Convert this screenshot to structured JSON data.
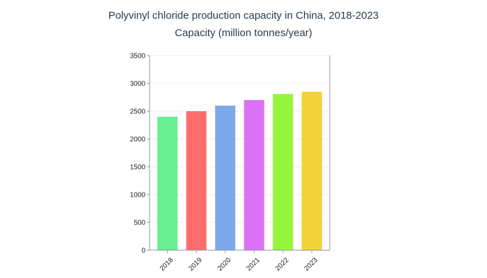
{
  "chart_data": {
    "type": "bar",
    "title": "Polyvinyl chloride production capacity in China, 2018-2023",
    "subtitle": "Capacity (million tonnes/year)",
    "xlabel": "",
    "ylabel": "",
    "categories": [
      "2018",
      "2019",
      "2020",
      "2021",
      "2022",
      "2023"
    ],
    "values": [
      2400,
      2500,
      2600,
      2700,
      2810,
      2850
    ],
    "colors": [
      "#66ee90",
      "#fd6d6d",
      "#7ea9e9",
      "#db72f5",
      "#96f53f",
      "#f3d237"
    ],
    "ylim": [
      0,
      3500
    ],
    "yticks": [
      0,
      500,
      1000,
      1500,
      2000,
      2500,
      3000,
      3500
    ],
    "grid": true,
    "legend": "none"
  }
}
